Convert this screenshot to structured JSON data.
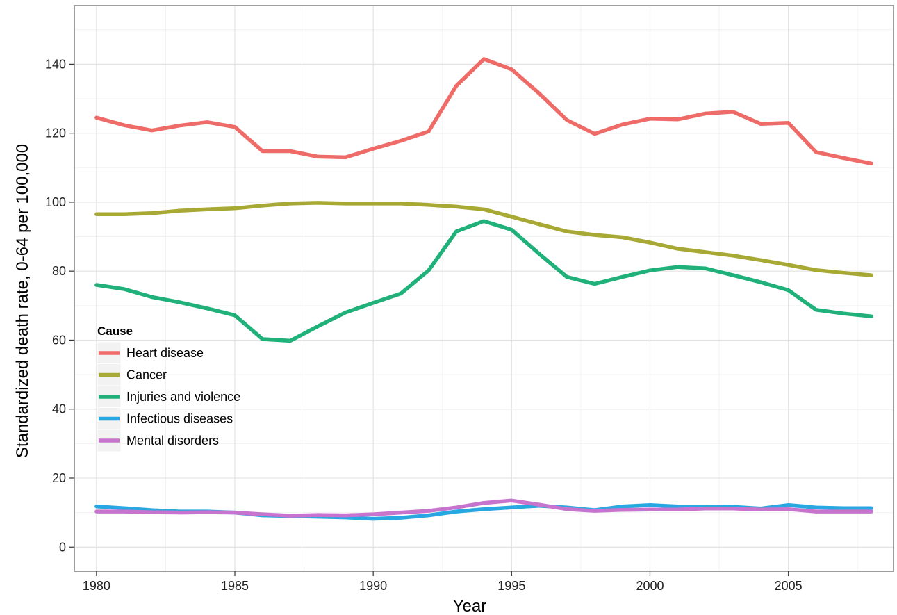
{
  "chart_data": {
    "type": "line",
    "xlabel": "Year",
    "ylabel": "Standardized death rate, 0-64 per 100,000",
    "xlim": [
      1979.2,
      2008.8
    ],
    "ylim": [
      -7,
      157
    ],
    "x_ticks": [
      1980,
      1985,
      1990,
      1995,
      2000,
      2005
    ],
    "y_ticks": [
      0,
      20,
      40,
      60,
      80,
      100,
      120,
      140
    ],
    "grid": true,
    "legend": {
      "title": "Cause",
      "placement": "left"
    },
    "x": [
      1980,
      1981,
      1982,
      1983,
      1984,
      1985,
      1986,
      1987,
      1988,
      1989,
      1990,
      1991,
      1992,
      1993,
      1994,
      1995,
      1996,
      1997,
      1998,
      1999,
      2000,
      2001,
      2002,
      2003,
      2004,
      2005,
      2006,
      2007,
      2008
    ],
    "series": [
      {
        "name": "Heart disease",
        "color": "#EE6B67",
        "values": [
          124.5,
          122.3,
          120.8,
          122.2,
          123.2,
          121.8,
          114.8,
          114.8,
          113.2,
          113.0,
          115.5,
          117.8,
          120.5,
          133.7,
          141.5,
          138.5,
          131.5,
          123.8,
          119.8,
          122.5,
          124.2,
          124.0,
          125.7,
          126.2,
          122.7,
          123.0,
          114.5,
          112.8,
          111.2
        ]
      },
      {
        "name": "Cancer",
        "color": "#A8A834",
        "values": [
          96.5,
          96.5,
          96.8,
          97.5,
          97.9,
          98.2,
          99.0,
          99.6,
          99.8,
          99.6,
          99.6,
          99.6,
          99.2,
          98.7,
          97.9,
          95.8,
          93.6,
          91.5,
          90.5,
          89.8,
          88.3,
          86.5,
          85.5,
          84.5,
          83.2,
          81.8,
          80.3,
          79.5,
          78.8
        ]
      },
      {
        "name": "Injuries and violence",
        "color": "#20B07A",
        "values": [
          76.0,
          74.8,
          72.5,
          71.0,
          69.2,
          67.2,
          60.3,
          59.8,
          64.0,
          68.0,
          70.8,
          73.5,
          80.2,
          91.5,
          94.5,
          92.0,
          85.0,
          78.3,
          76.3,
          78.3,
          80.2,
          81.2,
          80.8,
          78.8,
          76.8,
          74.5,
          68.8,
          67.7,
          66.9
        ]
      },
      {
        "name": "Infectious diseases",
        "color": "#28A8E0",
        "values": [
          11.8,
          11.3,
          10.7,
          10.3,
          10.3,
          10.0,
          9.2,
          9.0,
          8.8,
          8.6,
          8.2,
          8.5,
          9.2,
          10.3,
          11.0,
          11.5,
          12.0,
          11.5,
          10.7,
          11.8,
          12.2,
          11.8,
          11.8,
          11.7,
          11.2,
          12.2,
          11.5,
          11.3,
          11.3
        ]
      },
      {
        "name": "Mental disorders",
        "color": "#C774CE",
        "values": [
          10.3,
          10.3,
          10.1,
          10.0,
          10.1,
          10.0,
          9.5,
          9.1,
          9.3,
          9.2,
          9.5,
          10.0,
          10.5,
          11.5,
          12.8,
          13.5,
          12.3,
          11.0,
          10.5,
          10.8,
          10.9,
          10.9,
          11.2,
          11.2,
          10.9,
          11.0,
          10.3,
          10.3,
          10.3
        ]
      }
    ]
  }
}
